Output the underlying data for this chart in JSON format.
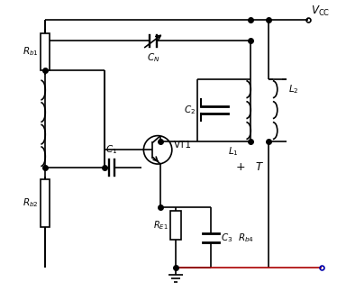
{
  "bg_color": "#ffffff",
  "line_color": "#000000",
  "red_line_color": "#aa0000",
  "blue_dot_color": "#0000aa",
  "figsize": [
    3.74,
    3.23
  ],
  "dpi": 100
}
